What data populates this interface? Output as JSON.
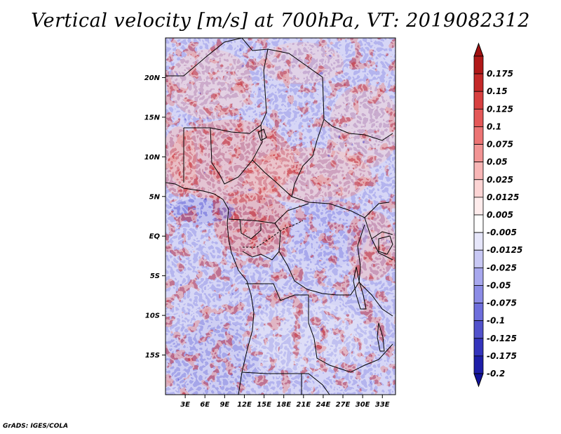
{
  "title": "Vertical velocity [m/s] at 700hPa, VT: 2019082312",
  "credit": "GrADS: IGES/COLA",
  "map": {
    "lat_range": [
      -20,
      25
    ],
    "lon_range": [
      0,
      35
    ],
    "lat_ticks": [
      {
        "value": 20,
        "label": "20N"
      },
      {
        "value": 15,
        "label": "15N"
      },
      {
        "value": 10,
        "label": "10N"
      },
      {
        "value": 5,
        "label": "5N"
      },
      {
        "value": 0,
        "label": "EQ"
      },
      {
        "value": -5,
        "label": "5S"
      },
      {
        "value": -10,
        "label": "10S"
      },
      {
        "value": -15,
        "label": "15S"
      }
    ],
    "lon_ticks": [
      {
        "value": 3,
        "label": "3E"
      },
      {
        "value": 6,
        "label": "6E"
      },
      {
        "value": 9,
        "label": "9E"
      },
      {
        "value": 12,
        "label": "12E"
      },
      {
        "value": 15,
        "label": "15E"
      },
      {
        "value": 18,
        "label": "18E"
      },
      {
        "value": 21,
        "label": "21E"
      },
      {
        "value": 24,
        "label": "24E"
      },
      {
        "value": 27,
        "label": "27E"
      },
      {
        "value": 30,
        "label": "30E"
      },
      {
        "value": 33,
        "label": "33E"
      }
    ]
  },
  "colorbar": {
    "levels": [
      {
        "label": "0.175",
        "color": "#b01818"
      },
      {
        "label": "0.15",
        "color": "#c42828"
      },
      {
        "label": "0.125",
        "color": "#d84040"
      },
      {
        "label": "0.1",
        "color": "#e45858"
      },
      {
        "label": "0.075",
        "color": "#ec7474"
      },
      {
        "label": "0.05",
        "color": "#f29494"
      },
      {
        "label": "0.025",
        "color": "#f8b6b6"
      },
      {
        "label": "0.0125",
        "color": "#fcd4d4"
      },
      {
        "label": "0.005",
        "color": "#feecec"
      },
      {
        "label": "-0.005",
        "color": "#ffffff"
      },
      {
        "label": "-0.0125",
        "color": "#e6e6fa"
      },
      {
        "label": "-0.025",
        "color": "#c8c8f4"
      },
      {
        "label": "-0.05",
        "color": "#a8a8ee"
      },
      {
        "label": "-0.075",
        "color": "#8c8ce6"
      },
      {
        "label": "-0.1",
        "color": "#6e6edc"
      },
      {
        "label": "-0.125",
        "color": "#5252cc"
      },
      {
        "label": "-0.175",
        "color": "#3434bc"
      },
      {
        "label": "-0.2",
        "color": "#1e1ea8"
      }
    ],
    "top_arrow_color": "#a01010",
    "bottom_arrow_color": "#12129a"
  }
}
